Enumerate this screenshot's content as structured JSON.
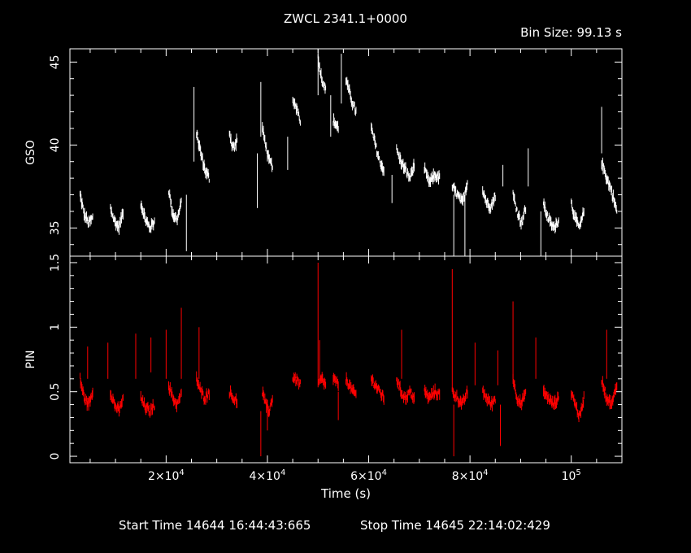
{
  "title": "ZWCL 2341.1+0000",
  "bin_size_label": "Bin Size: 99.13 s",
  "xlabel": "Time (s)",
  "footer": {
    "start": "Start Time 14644 16:44:43:665",
    "stop": "Stop Time 14645 22:14:02:429"
  },
  "colors": {
    "gso": "#ffffff",
    "pin": "#ff0000",
    "axes": "#ffffff",
    "background": "#000000"
  },
  "chart_data": [
    {
      "type": "scatter",
      "panel": "top",
      "ylabel": "GSO",
      "xlim": [
        1000,
        110000
      ],
      "ylim": [
        33.3,
        45.8
      ],
      "yticks": [
        35,
        40,
        45
      ],
      "ytick_labels": [
        "35",
        "40",
        "45"
      ],
      "xticks": [
        20000,
        40000,
        60000,
        80000,
        100000
      ],
      "series": [
        {
          "color": "#ffffff",
          "segments": [
            {
              "x0": 3000,
              "x1": 5500,
              "y": [
                37.0,
                35.8,
                35.3,
                35.6
              ]
            },
            {
              "x0": 9000,
              "x1": 11500,
              "y": [
                36.2,
                35.4,
                35.0,
                36.0
              ]
            },
            {
              "x0": 15000,
              "x1": 17700,
              "y": [
                36.5,
                35.5,
                35.0,
                35.4
              ]
            },
            {
              "x0": 20500,
              "x1": 23000,
              "y": [
                37.3,
                35.8,
                35.5,
                36.5
              ]
            },
            {
              "x0": 26000,
              "x1": 28500,
              "y": [
                40.8,
                39.5,
                38.5,
                38.0
              ]
            },
            {
              "x0": 32500,
              "x1": 34000,
              "y": [
                40.8,
                40.0,
                39.8,
                40.4
              ]
            },
            {
              "x0": 39000,
              "x1": 41000,
              "y": [
                41.0,
                40.0,
                39.0,
                38.8
              ]
            },
            {
              "x0": 45000,
              "x1": 46500,
              "y": [
                42.5,
                42.3,
                41.5
              ]
            },
            {
              "x0": 50000,
              "x1": 51500,
              "y": [
                45.2,
                44.0,
                43.3
              ]
            },
            {
              "x0": 53000,
              "x1": 54000,
              "y": [
                41.5,
                41.0
              ]
            },
            {
              "x0": 55500,
              "x1": 57500,
              "y": [
                44.0,
                43.2,
                42.5,
                42.0
              ]
            },
            {
              "x0": 60500,
              "x1": 63000,
              "y": [
                41.0,
                40.0,
                39.0,
                38.5
              ]
            },
            {
              "x0": 65500,
              "x1": 69000,
              "y": [
                39.7,
                39.0,
                38.5,
                38.0,
                38.8
              ]
            },
            {
              "x0": 71000,
              "x1": 74000,
              "y": [
                38.5,
                37.7,
                38.2,
                38.0
              ]
            },
            {
              "x0": 76500,
              "x1": 79500,
              "y": [
                37.5,
                37.0,
                36.5,
                37.8
              ]
            },
            {
              "x0": 82500,
              "x1": 85000,
              "y": [
                37.3,
                36.5,
                36.3,
                37.0
              ]
            },
            {
              "x0": 88500,
              "x1": 91000,
              "y": [
                37.0,
                36.0,
                35.3,
                36.2
              ]
            },
            {
              "x0": 94500,
              "x1": 97500,
              "y": [
                36.5,
                35.5,
                35.0,
                35.5
              ]
            },
            {
              "x0": 100000,
              "x1": 102500,
              "y": [
                36.5,
                35.5,
                35.0,
                36.0
              ]
            },
            {
              "x0": 106000,
              "x1": 109000,
              "y": [
                39.0,
                38.0,
                37.2,
                36.0
              ]
            }
          ],
          "spikes": [
            {
              "x": 24000,
              "y0": 37.0,
              "y1": 33.6
            },
            {
              "x": 25500,
              "y0": 39.0,
              "y1": 43.5
            },
            {
              "x": 38000,
              "x1": 38000,
              "y0": 39.5,
              "y1": 36.2
            },
            {
              "x": 38700,
              "y0": 40.5,
              "y1": 43.8
            },
            {
              "x": 44000,
              "y0": 38.5,
              "y1": 40.5
            },
            {
              "x": 50000,
              "y0": 43.0,
              "y1": 45.8
            },
            {
              "x": 52500,
              "y0": 40.5,
              "y1": 43.0
            },
            {
              "x": 54600,
              "y0": 42.5,
              "y1": 45.5
            },
            {
              "x": 64600,
              "y0": 38.2,
              "y1": 36.5
            },
            {
              "x": 76800,
              "y0": 37.0,
              "y1": 33.3
            },
            {
              "x": 79000,
              "y0": 37.0,
              "y1": 33.3
            },
            {
              "x": 94000,
              "y0": 36.0,
              "y1": 33.3
            },
            {
              "x": 106000,
              "y0": 39.5,
              "y1": 42.3
            },
            {
              "x": 91500,
              "y0": 37.5,
              "y1": 39.8
            },
            {
              "x": 86500,
              "y0": 37.5,
              "y1": 38.8
            }
          ]
        }
      ]
    },
    {
      "type": "scatter",
      "panel": "bottom",
      "ylabel": "PIN",
      "xlabel": "Time (s)",
      "xlim": [
        1000,
        110000
      ],
      "ylim": [
        -0.05,
        1.55
      ],
      "yticks": [
        0,
        0.5,
        1,
        1.5
      ],
      "ytick_labels": [
        "0",
        "0.5",
        "1",
        "1.5"
      ],
      "xticks": [
        20000,
        40000,
        60000,
        80000,
        100000
      ],
      "xtick_labels": [
        "2×10^4",
        "4×10^4",
        "6×10^4",
        "8×10^4",
        "10^5"
      ],
      "series": [
        {
          "color": "#ff0000",
          "segments": [
            {
              "x0": 3000,
              "x1": 5500,
              "y": [
                0.6,
                0.45,
                0.4,
                0.5
              ]
            },
            {
              "x0": 9000,
              "x1": 11500,
              "y": [
                0.5,
                0.4,
                0.35,
                0.45
              ]
            },
            {
              "x0": 15000,
              "x1": 17700,
              "y": [
                0.45,
                0.38,
                0.35,
                0.4
              ]
            },
            {
              "x0": 20500,
              "x1": 23000,
              "y": [
                0.55,
                0.45,
                0.4,
                0.48
              ]
            },
            {
              "x0": 26000,
              "x1": 28500,
              "y": [
                0.6,
                0.5,
                0.45,
                0.5
              ]
            },
            {
              "x0": 32500,
              "x1": 34000,
              "y": [
                0.5,
                0.45,
                0.42
              ]
            },
            {
              "x0": 39000,
              "x1": 41000,
              "y": [
                0.5,
                0.4,
                0.35,
                0.45
              ]
            },
            {
              "x0": 45000,
              "x1": 46500,
              "y": [
                0.6,
                0.6,
                0.55
              ]
            },
            {
              "x0": 50000,
              "x1": 51500,
              "y": [
                0.55,
                0.6,
                0.55
              ]
            },
            {
              "x0": 53000,
              "x1": 54000,
              "y": [
                0.6,
                0.55
              ]
            },
            {
              "x0": 55500,
              "x1": 57500,
              "y": [
                0.6,
                0.55,
                0.5,
                0.48
              ]
            },
            {
              "x0": 60500,
              "x1": 63000,
              "y": [
                0.6,
                0.55,
                0.5,
                0.45
              ]
            },
            {
              "x0": 65500,
              "x1": 69000,
              "y": [
                0.6,
                0.5,
                0.45,
                0.5,
                0.45
              ]
            },
            {
              "x0": 71000,
              "x1": 74000,
              "y": [
                0.5,
                0.45,
                0.5,
                0.48
              ]
            },
            {
              "x0": 76500,
              "x1": 79500,
              "y": [
                0.5,
                0.45,
                0.4,
                0.5
              ]
            },
            {
              "x0": 82500,
              "x1": 85000,
              "y": [
                0.5,
                0.45,
                0.4,
                0.45
              ]
            },
            {
              "x0": 88500,
              "x1": 91000,
              "y": [
                0.6,
                0.45,
                0.4,
                0.5
              ]
            },
            {
              "x0": 94500,
              "x1": 97500,
              "y": [
                0.5,
                0.45,
                0.4,
                0.45
              ]
            },
            {
              "x0": 100000,
              "x1": 102500,
              "y": [
                0.5,
                0.4,
                0.3,
                0.45
              ]
            },
            {
              "x0": 106000,
              "x1": 109000,
              "y": [
                0.6,
                0.45,
                0.4,
                0.55
              ]
            }
          ],
          "spikes": [
            {
              "x": 4500,
              "y0": 0.6,
              "y1": 0.85
            },
            {
              "x": 8500,
              "y0": 0.6,
              "y1": 0.88
            },
            {
              "x": 14000,
              "y0": 0.6,
              "y1": 0.95
            },
            {
              "x": 17000,
              "y0": 0.65,
              "y1": 0.92
            },
            {
              "x": 20000,
              "y0": 0.6,
              "y1": 0.98
            },
            {
              "x": 23000,
              "y0": 0.6,
              "y1": 1.15
            },
            {
              "x": 26500,
              "y0": 0.6,
              "y1": 1.0
            },
            {
              "x": 38700,
              "y0": 0.35,
              "y1": 0.0
            },
            {
              "x": 40000,
              "y0": 0.4,
              "y1": 0.2
            },
            {
              "x": 50000,
              "y0": 0.6,
              "y1": 1.5
            },
            {
              "x": 50300,
              "y0": 0.6,
              "y1": 0.9
            },
            {
              "x": 54000,
              "y0": 0.5,
              "y1": 0.28
            },
            {
              "x": 66500,
              "y0": 0.6,
              "y1": 0.98
            },
            {
              "x": 76500,
              "y0": 0.5,
              "y1": 1.45
            },
            {
              "x": 76800,
              "y0": 0.4,
              "y1": 0.0
            },
            {
              "x": 81000,
              "y0": 0.55,
              "y1": 0.88
            },
            {
              "x": 85500,
              "y0": 0.55,
              "y1": 0.82
            },
            {
              "x": 86000,
              "y0": 0.4,
              "y1": 0.08
            },
            {
              "x": 88500,
              "y0": 0.6,
              "y1": 1.2
            },
            {
              "x": 93000,
              "y0": 0.6,
              "y1": 0.92
            },
            {
              "x": 107000,
              "y0": 0.6,
              "y1": 0.98
            },
            {
              "x": 94000,
              "y0": 0.0,
              "y1": 0.0
            }
          ]
        }
      ]
    }
  ]
}
